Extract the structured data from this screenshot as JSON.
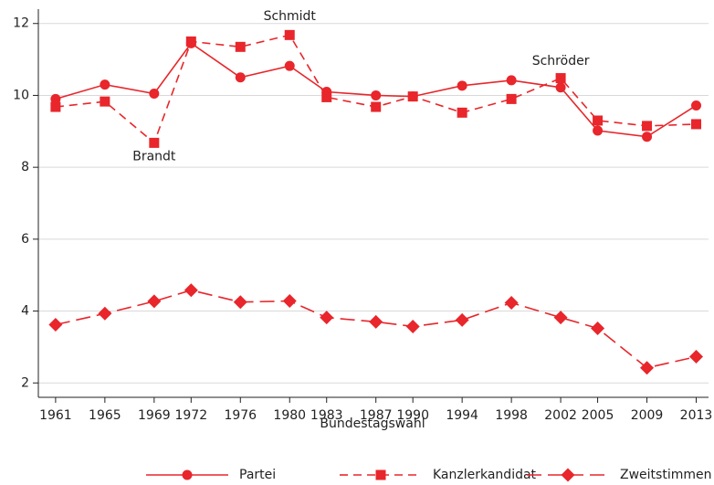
{
  "chart_data": {
    "type": "line",
    "x": [
      1961,
      1965,
      1969,
      1972,
      1976,
      1980,
      1983,
      1987,
      1990,
      1994,
      1998,
      2002,
      2005,
      2009,
      2013
    ],
    "xlabel": "Bundestagswahl",
    "xlim": [
      1959.6,
      2014
    ],
    "xticks": [
      1961,
      1965,
      1969,
      1972,
      1976,
      1980,
      1983,
      1987,
      1990,
      1994,
      1998,
      2002,
      2005,
      2009,
      2013
    ],
    "ylim": [
      1.6,
      12.4
    ],
    "yticks": [
      2,
      4,
      6,
      8,
      10,
      12
    ],
    "grid": true,
    "legend": "bottom",
    "series": [
      {
        "name": "Partei",
        "color": "#e8262b",
        "dash": "solid",
        "marker": "circle",
        "values": [
          9.9,
          10.3,
          10.05,
          11.45,
          10.5,
          10.82,
          10.1,
          10.0,
          9.97,
          10.27,
          10.42,
          10.22,
          9.02,
          8.85,
          9.72
        ]
      },
      {
        "name": "Kanzlerkandidat",
        "color": "#e8262b",
        "dash": "dashed",
        "marker": "square",
        "values": [
          9.68,
          9.83,
          8.68,
          11.5,
          11.35,
          11.68,
          9.95,
          9.68,
          9.97,
          9.52,
          9.9,
          10.48,
          9.3,
          9.15,
          9.2
        ]
      },
      {
        "name": "Zweitstimmen",
        "color": "#e8262b",
        "dash": "longdash",
        "marker": "diamond",
        "values": [
          3.62,
          3.93,
          4.27,
          4.58,
          4.25,
          4.28,
          3.82,
          3.7,
          3.57,
          3.75,
          4.23,
          3.82,
          3.52,
          2.42,
          2.73
        ]
      }
    ],
    "annotations": [
      {
        "text": "Schmidt",
        "x": 1980,
        "y": 12.2
      },
      {
        "text": "Brandt",
        "x": 1969,
        "y": 8.3
      },
      {
        "text": "Schröder",
        "x": 2002,
        "y": 10.95
      }
    ]
  }
}
